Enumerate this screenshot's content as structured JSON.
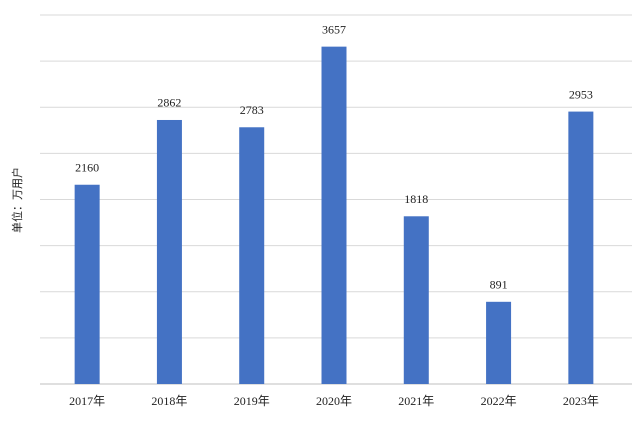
{
  "chart_data": {
    "type": "bar",
    "y_label": "单位：万用户",
    "categories": [
      "2017年",
      "2018年",
      "2019年",
      "2020年",
      "2021年",
      "2022年",
      "2023年"
    ],
    "values": [
      2160,
      2862,
      2783,
      3657,
      1818,
      891,
      2953
    ],
    "color": "#4472c4",
    "ylim": [
      0,
      4000
    ],
    "yticks": [
      0,
      500,
      1000,
      1500,
      2000,
      2500,
      3000,
      3500,
      4000
    ],
    "grid": true
  }
}
